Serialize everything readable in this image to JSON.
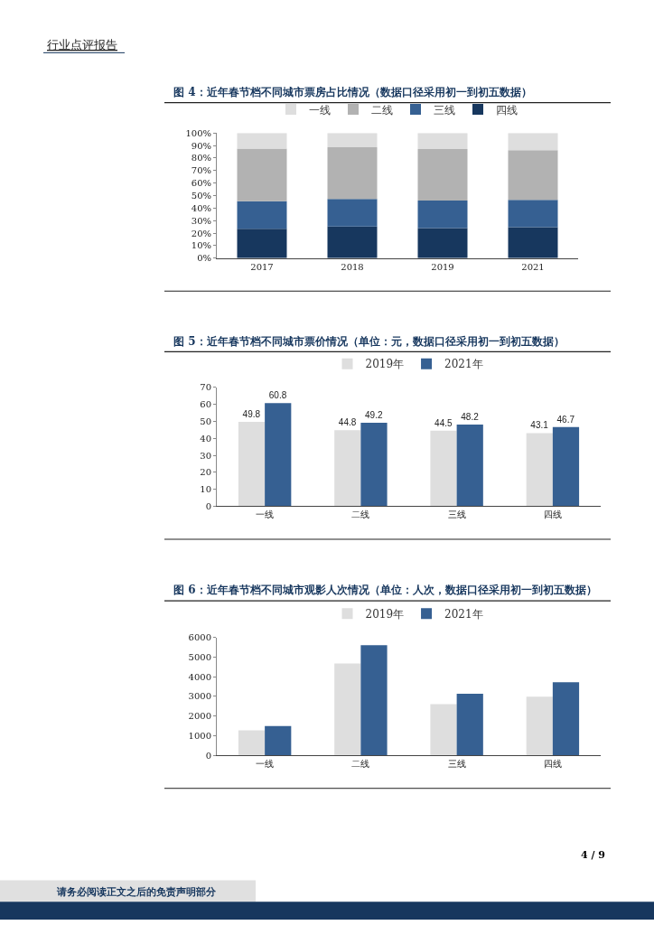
{
  "chart_data": [
    {
      "type": "bar",
      "title": "图 4：近年春节档不同城市票房占比情况（数据口径采用初一到初五数据）",
      "categories": [
        "2017",
        "2018",
        "2019",
        "2021"
      ],
      "stacked": true,
      "series": [
        {
          "name": "四线",
          "color": "#17375e",
          "values": [
            23.5,
            25.3,
            24,
            24.7
          ]
        },
        {
          "name": "三线",
          "color": "#366092",
          "values": [
            22,
            21.9,
            22,
            21.9
          ]
        },
        {
          "name": "二线",
          "color": "#b2b2b2",
          "values": [
            42,
            41.4,
            41.2,
            39.7
          ]
        },
        {
          "name": "一线",
          "color": "#dedede",
          "values": [
            12.5,
            11.4,
            12.8,
            13.7
          ]
        }
      ],
      "ylim": [
        0,
        100
      ],
      "yticks": [
        {
          "value": 0,
          "label": "0%"
        },
        {
          "value": 10,
          "label": "10%"
        },
        {
          "value": 20,
          "label": "20%"
        },
        {
          "value": 30,
          "label": "30%"
        },
        {
          "value": 40,
          "label": "40%"
        },
        {
          "value": 50,
          "label": "50%"
        },
        {
          "value": 60,
          "label": "60%"
        },
        {
          "value": 70,
          "label": "70%"
        },
        {
          "value": 80,
          "label": "80%"
        },
        {
          "value": 90,
          "label": "90%"
        },
        {
          "value": 100,
          "label": "100%"
        }
      ],
      "legend": "top",
      "grid": false,
      "annotations": [
        "行业点评报告"
      ]
    },
    {
      "type": "bar",
      "title": "图 5：近年春节档不同城市票价情况（单位：元，数据口径采用初一到初五数据）",
      "categories": [
        "一线",
        "二线",
        "三线",
        "四线"
      ],
      "series": [
        {
          "name": "2019年",
          "color": "#dedede",
          "values": [
            49.8,
            44.8,
            44.5,
            43.1
          ]
        },
        {
          "name": "2021年",
          "color": "#366092",
          "values": [
            60.8,
            49.2,
            48.2,
            46.7
          ]
        }
      ],
      "ylim": [
        0,
        70
      ],
      "yticks": [
        0,
        10,
        20,
        30,
        40,
        50,
        60,
        70
      ],
      "data_labels": true,
      "legend": "top",
      "grid": false
    },
    {
      "type": "bar",
      "title": "图 6：近年春节档不同城市观影人次情况（单位：人次，数据口径采用初一到初五数据）",
      "categories": [
        "一线",
        "二线",
        "三线",
        "四线"
      ],
      "series": [
        {
          "name": "2019年",
          "color": "#dedede",
          "values": [
            1270,
            4680,
            2600,
            2980
          ]
        },
        {
          "name": "2021年",
          "color": "#366092",
          "values": [
            1490,
            5610,
            3130,
            3720
          ]
        }
      ],
      "ylim": [
        0,
        6000
      ],
      "yticks": [
        0,
        1000,
        2000,
        3000,
        4000,
        5000,
        6000
      ],
      "legend": "top",
      "grid": false,
      "annotations": [
        "4 / 9",
        "请务必阅读正文之后的免责声明部分"
      ]
    }
  ]
}
